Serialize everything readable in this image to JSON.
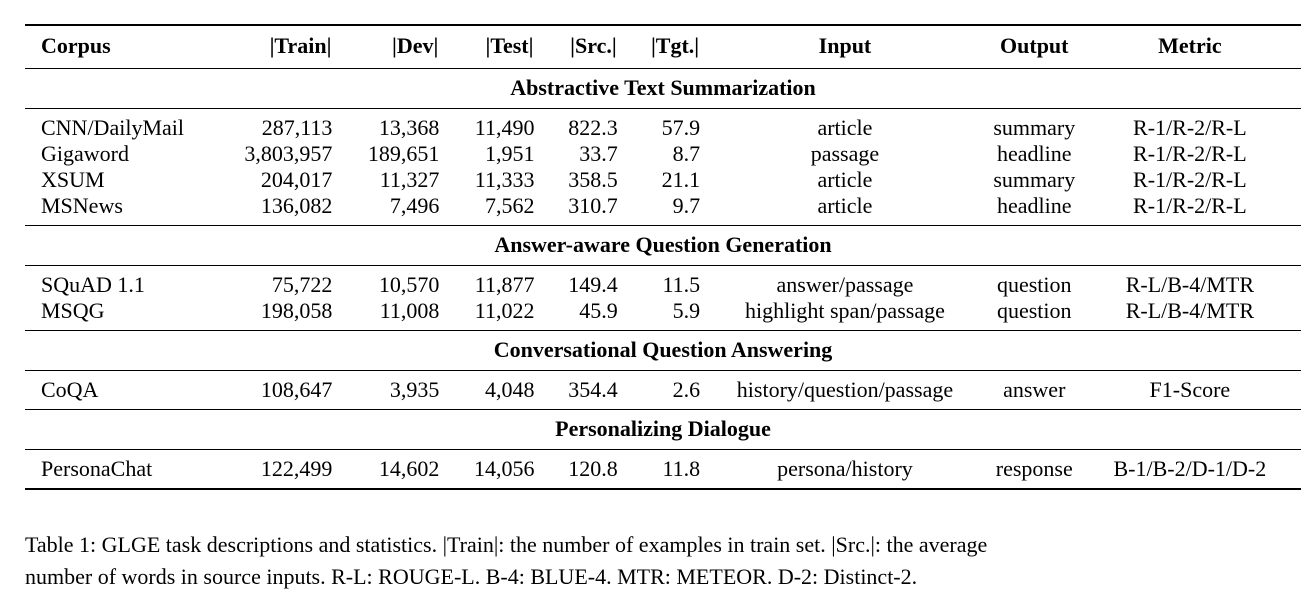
{
  "table": {
    "headers": [
      "Corpus",
      "|Train|",
      "|Dev|",
      "|Test|",
      "|Src.|",
      "|Tgt.|",
      "Input",
      "Output",
      "Metric"
    ],
    "sections": [
      {
        "title": "Abstractive Text Summarization",
        "rows": [
          [
            "CNN/DailyMail",
            "287,113",
            "13,368",
            "11,490",
            "822.3",
            "57.9",
            "article",
            "summary",
            "R-1/R-2/R-L"
          ],
          [
            "Gigaword",
            "3,803,957",
            "189,651",
            "1,951",
            "33.7",
            "8.7",
            "passage",
            "headline",
            "R-1/R-2/R-L"
          ],
          [
            "XSUM",
            "204,017",
            "11,327",
            "11,333",
            "358.5",
            "21.1",
            "article",
            "summary",
            "R-1/R-2/R-L"
          ],
          [
            "MSNews",
            "136,082",
            "7,496",
            "7,562",
            "310.7",
            "9.7",
            "article",
            "headline",
            "R-1/R-2/R-L"
          ]
        ]
      },
      {
        "title": "Answer-aware Question Generation",
        "rows": [
          [
            "SQuAD 1.1",
            "75,722",
            "10,570",
            "11,877",
            "149.4",
            "11.5",
            "answer/passage",
            "question",
            "R-L/B-4/MTR"
          ],
          [
            "MSQG",
            "198,058",
            "11,008",
            "11,022",
            "45.9",
            "5.9",
            "highlight span/passage",
            "question",
            "R-L/B-4/MTR"
          ]
        ]
      },
      {
        "title": "Conversational Question Answering",
        "rows": [
          [
            "CoQA",
            "108,647",
            "3,935",
            "4,048",
            "354.4",
            "2.6",
            "history/question/passage",
            "answer",
            "F1-Score"
          ]
        ]
      },
      {
        "title": "Personalizing Dialogue",
        "rows": [
          [
            "PersonaChat",
            "122,499",
            "14,602",
            "14,056",
            "120.8",
            "11.8",
            "persona/history",
            "response",
            "B-1/B-2/D-1/D-2"
          ]
        ]
      }
    ]
  },
  "caption": {
    "line1": "Table 1: GLGE task descriptions and statistics. |Train|: the number of examples in train set. |Src.|: the average",
    "line2": "number of words in source inputs. R-L: ROUGE-L. B-4: BLUE-4. MTR: METEOR. D-2: Distinct-2."
  }
}
